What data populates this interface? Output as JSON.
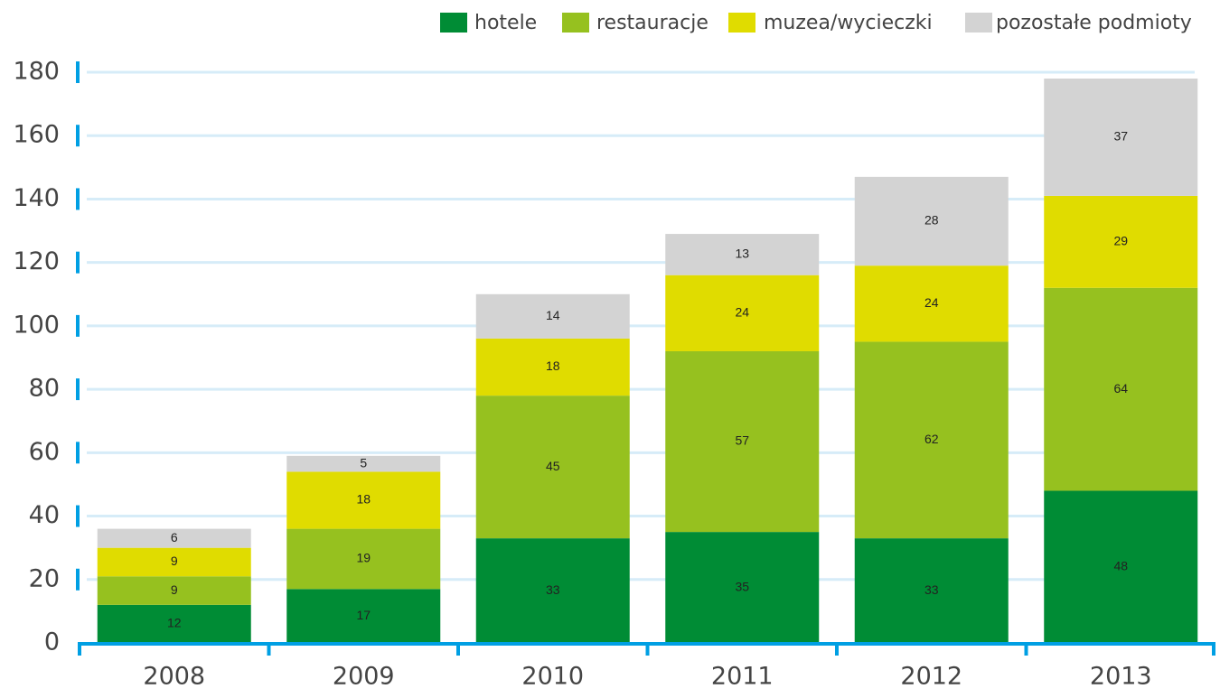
{
  "chart_data": {
    "type": "stacked_bar",
    "categories": [
      "2008",
      "2009",
      "2010",
      "2011",
      "2012",
      "2013"
    ],
    "series": [
      {
        "name": "hotele",
        "color": "#008c35",
        "values": [
          12,
          17,
          33,
          35,
          33,
          48
        ]
      },
      {
        "name": "restauracje",
        "color": "#96c11f",
        "values": [
          9,
          19,
          45,
          57,
          62,
          64
        ]
      },
      {
        "name": "muzea/wycieczki",
        "color": "#e0dc00",
        "values": [
          9,
          18,
          18,
          24,
          24,
          29
        ]
      },
      {
        "name": "pozostałe podmioty",
        "color": "#d3d3d3",
        "values": [
          6,
          5,
          14,
          13,
          28,
          37
        ]
      }
    ],
    "ylim": [
      0,
      180
    ],
    "yticks": [
      0,
      20,
      40,
      60,
      80,
      100,
      120,
      140,
      160,
      180
    ],
    "grid": true
  }
}
